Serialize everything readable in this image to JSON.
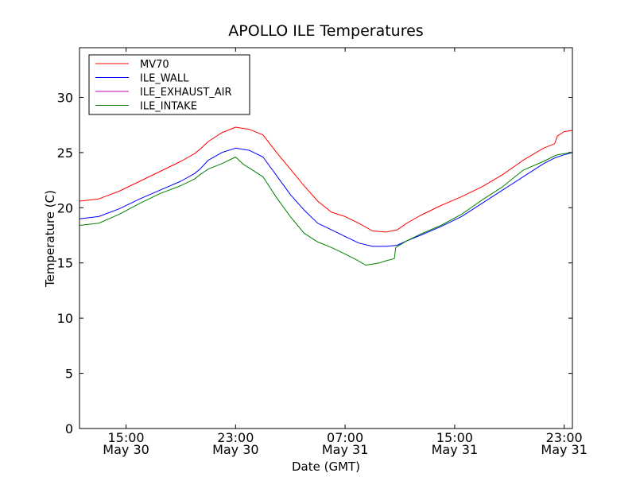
{
  "chart_data": {
    "type": "line",
    "title": "APOLLO ILE Temperatures",
    "xlabel": "Date (GMT)",
    "ylabel": "Temperature (C)",
    "ylim": [
      0,
      34.5
    ],
    "xlim": [
      11.6,
      47.6
    ],
    "x_unit": "hours since 00:00 May 30 (GMT)",
    "yticks": [
      0,
      5,
      10,
      15,
      20,
      25,
      30
    ],
    "xticks": [
      {
        "value": 15,
        "time": "15:00",
        "date": "May 30"
      },
      {
        "value": 23,
        "time": "23:00",
        "date": "May 30"
      },
      {
        "value": 31,
        "time": "07:00",
        "date": "May 31"
      },
      {
        "value": 39,
        "time": "15:00",
        "date": "May 31"
      },
      {
        "value": 47,
        "time": "23:00",
        "date": "May 31"
      }
    ],
    "legend_position": "top-left",
    "series": [
      {
        "name": "MV70",
        "color": "#ff0000",
        "x": [
          11.6,
          13.0,
          14.5,
          16.0,
          17.5,
          19.0,
          20.0,
          20.4,
          21.0,
          22.0,
          23.0,
          24.0,
          25.0,
          26.0,
          27.0,
          28.0,
          29.0,
          30.0,
          31.0,
          32.0,
          33.0,
          34.0,
          34.8,
          35.5,
          36.5,
          38.0,
          39.5,
          41.0,
          42.5,
          44.0,
          45.5,
          46.3,
          46.5,
          47.0,
          47.6
        ],
        "values": [
          20.6,
          20.8,
          21.5,
          22.4,
          23.3,
          24.2,
          24.9,
          25.3,
          26.0,
          26.8,
          27.3,
          27.1,
          26.6,
          25.0,
          23.5,
          22.0,
          20.6,
          19.6,
          19.2,
          18.6,
          17.9,
          17.8,
          18.0,
          18.6,
          19.3,
          20.2,
          21.0,
          21.9,
          23.0,
          24.3,
          25.4,
          25.8,
          26.5,
          26.9,
          27.0
        ]
      },
      {
        "name": "ILE_WALL",
        "color": "#0000ff",
        "x": [
          11.6,
          13.0,
          14.5,
          16.0,
          17.5,
          19.0,
          20.0,
          20.4,
          21.0,
          22.0,
          23.0,
          24.0,
          25.0,
          26.0,
          27.0,
          28.0,
          29.0,
          30.0,
          31.0,
          32.0,
          33.0,
          34.0,
          34.8,
          35.5,
          36.5,
          38.0,
          39.5,
          41.0,
          42.5,
          44.0,
          45.5,
          46.3,
          46.5,
          47.0,
          47.6
        ],
        "values": [
          19.0,
          19.2,
          19.9,
          20.8,
          21.6,
          22.4,
          23.1,
          23.5,
          24.3,
          25.0,
          25.4,
          25.2,
          24.6,
          22.9,
          21.2,
          19.8,
          18.6,
          18.0,
          17.4,
          16.8,
          16.5,
          16.5,
          16.6,
          17.0,
          17.5,
          18.3,
          19.2,
          20.4,
          21.6,
          22.8,
          24.0,
          24.5,
          24.6,
          24.8,
          25.0
        ]
      },
      {
        "name": "ILE_EXHAUST_AIR",
        "color": "#bf00bf",
        "x": [],
        "values": []
      },
      {
        "name": "ILE_INTAKE",
        "color": "#008000",
        "x": [
          11.6,
          13.0,
          14.5,
          16.0,
          17.5,
          19.0,
          20.0,
          20.4,
          21.0,
          22.0,
          23.0,
          23.6,
          24.0,
          25.0,
          26.0,
          27.0,
          28.0,
          29.0,
          30.0,
          31.0,
          31.8,
          32.5,
          33.5,
          34.0,
          34.6,
          34.7,
          35.5,
          36.5,
          38.0,
          39.5,
          41.0,
          42.5,
          44.0,
          45.5,
          46.3,
          46.5,
          47.0,
          47.6
        ],
        "values": [
          18.4,
          18.6,
          19.4,
          20.4,
          21.3,
          22.0,
          22.6,
          23.0,
          23.5,
          24.0,
          24.6,
          23.9,
          23.6,
          22.8,
          20.9,
          19.2,
          17.7,
          16.9,
          16.4,
          15.8,
          15.3,
          14.8,
          15.0,
          15.2,
          15.4,
          16.4,
          17.0,
          17.6,
          18.4,
          19.4,
          20.7,
          21.9,
          23.4,
          24.2,
          24.7,
          24.8,
          24.9,
          25.0
        ]
      }
    ]
  }
}
